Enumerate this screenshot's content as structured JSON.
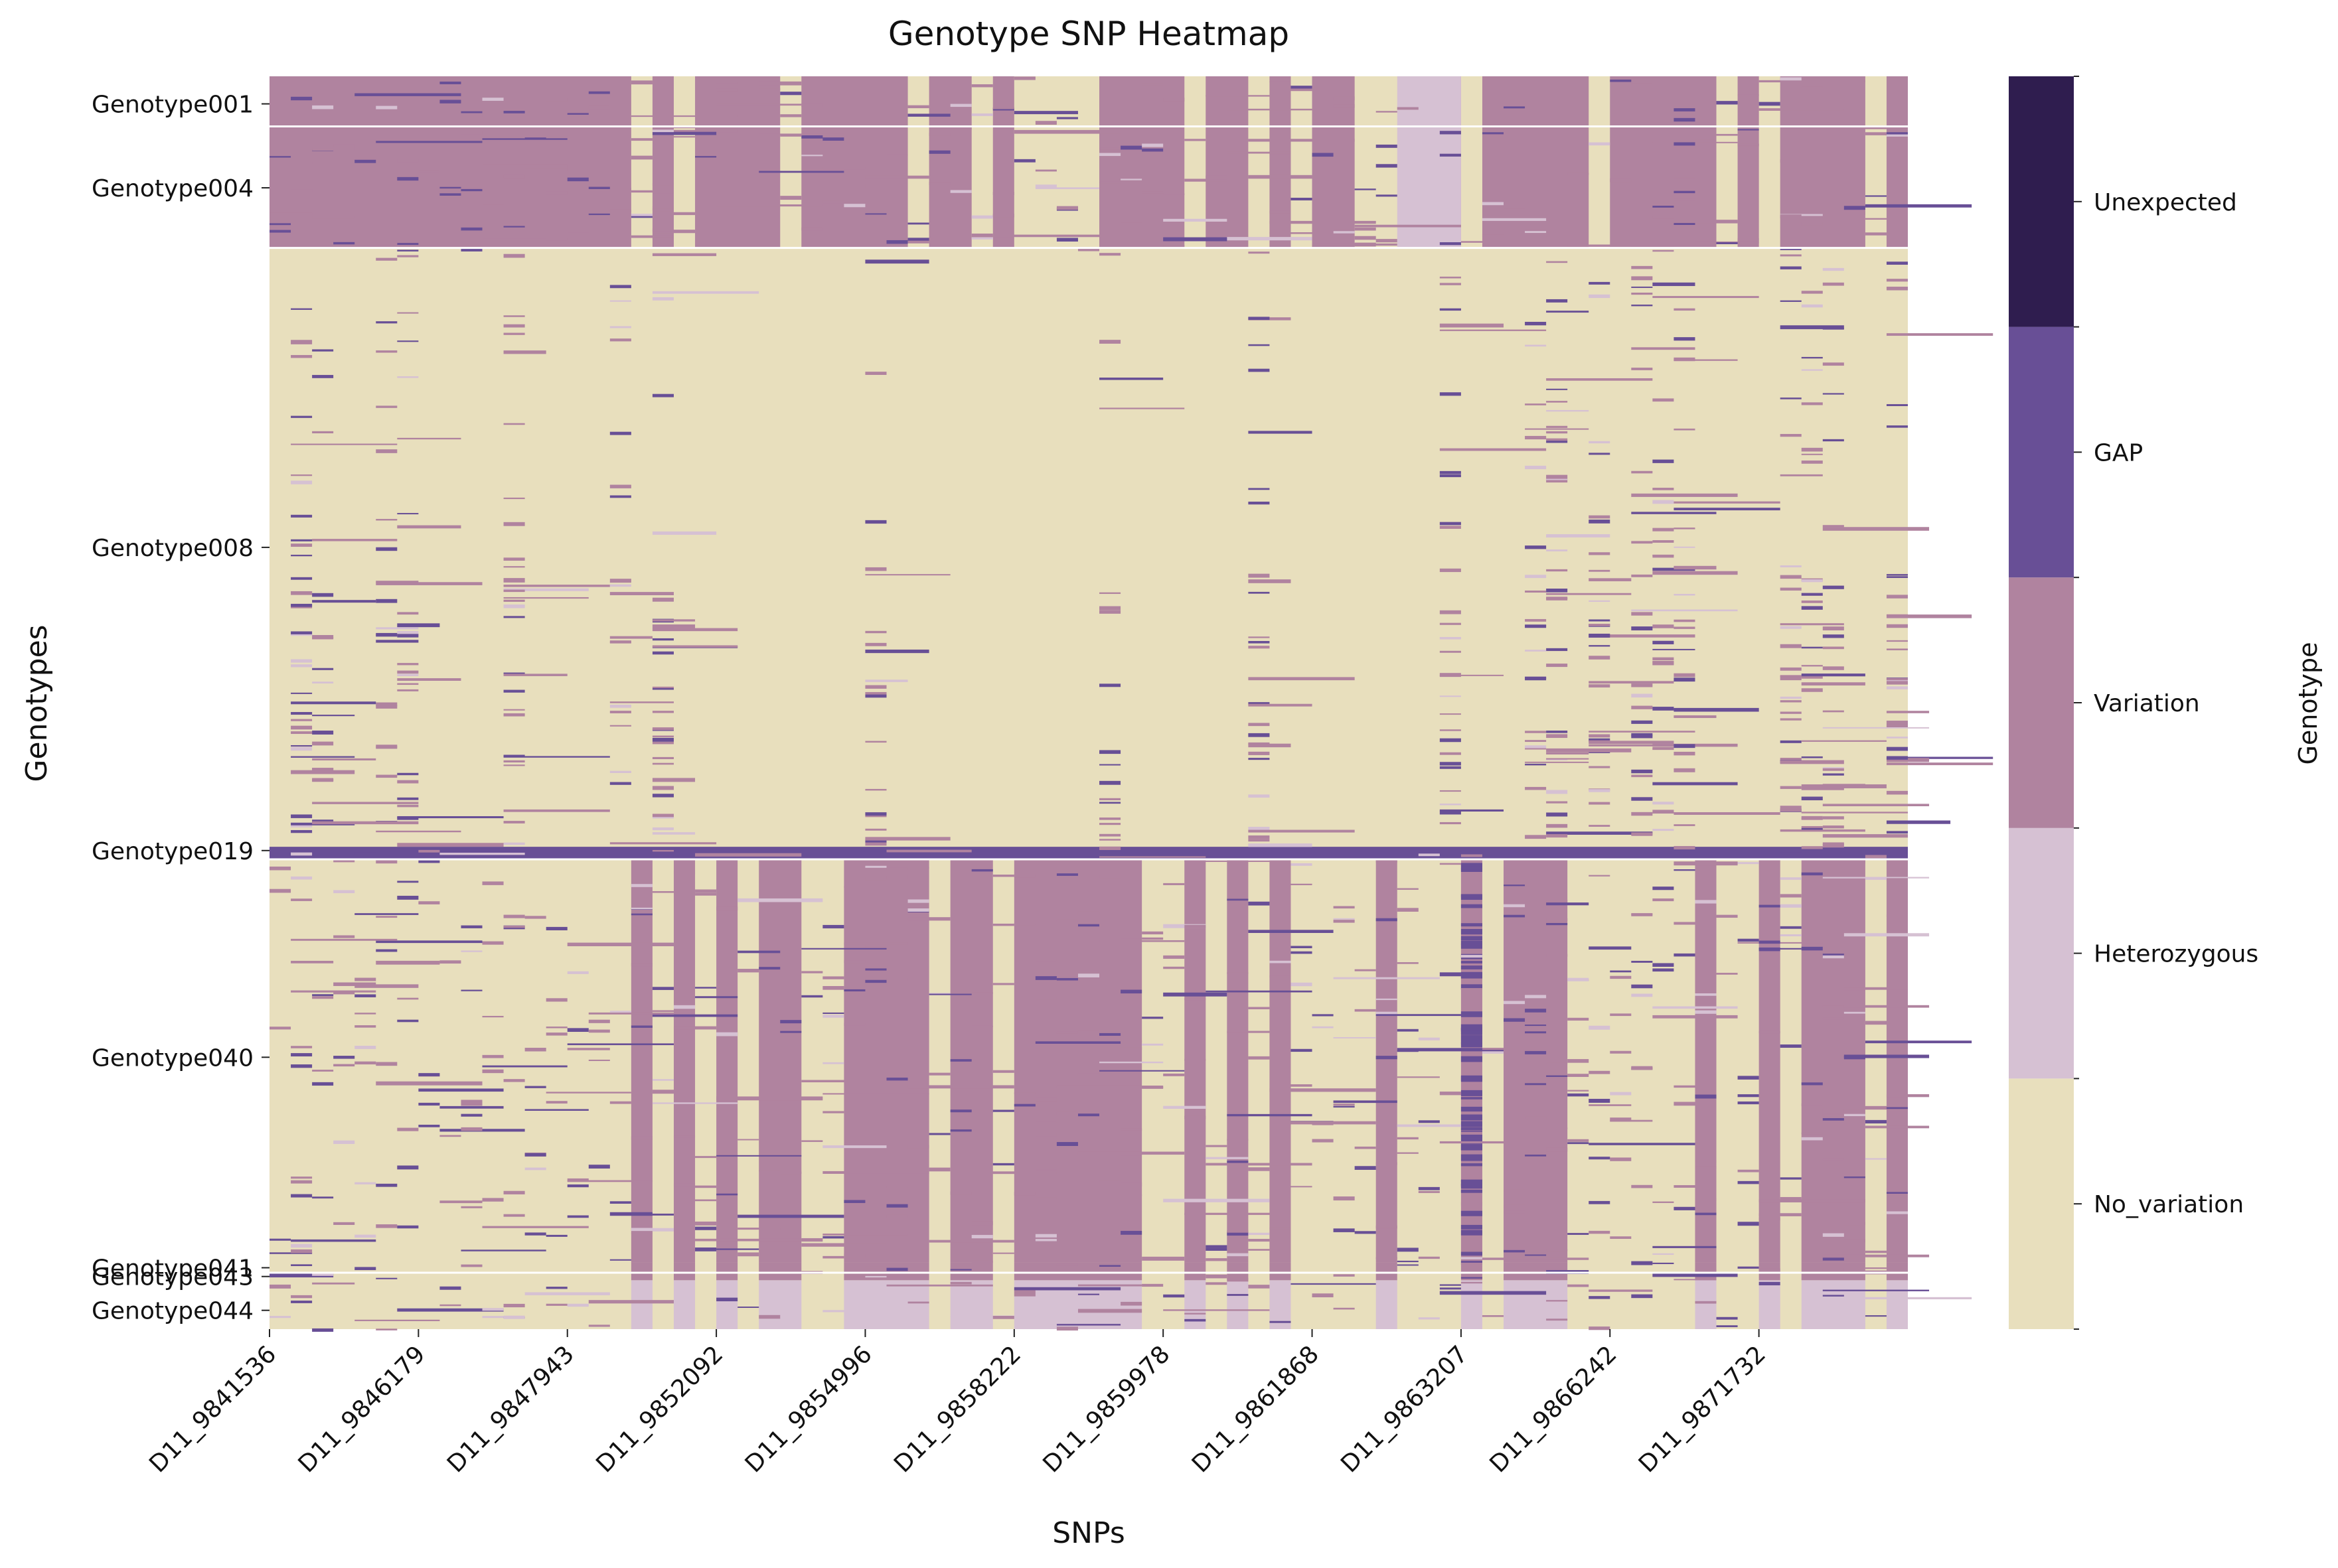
{
  "chart_data": {
    "type": "heatmap",
    "title": "Genotype SNP Heatmap",
    "xlabel": "SNPs",
    "ylabel": "Genotypes",
    "colorbar_label": "Genotype",
    "x_tick_labels": [
      "D11_9841536",
      "D11_9846179",
      "D11_9847943",
      "D11_9852092",
      "D11_9854996",
      "D11_9858222",
      "D11_9859978",
      "D11_9861868",
      "D11_9863207",
      "D11_9866242",
      "D11_9871732"
    ],
    "y_tick_labels": [
      {
        "label": "Genotype001",
        "row_fraction": 0.022
      },
      {
        "label": "Genotype004",
        "row_fraction": 0.089
      },
      {
        "label": "Genotype008",
        "row_fraction": 0.376
      },
      {
        "label": "Genotype019",
        "row_fraction": 0.618
      },
      {
        "label": "Genotype040",
        "row_fraction": 0.783
      },
      {
        "label": "Genotype041",
        "row_fraction": 0.951
      },
      {
        "label": "Genotype043",
        "row_fraction": 0.958
      },
      {
        "label": "Genotype044",
        "row_fraction": 0.985
      }
    ],
    "categories": [
      {
        "name": "No_variation",
        "code": 0,
        "color": "#e8dfbd"
      },
      {
        "name": "Heterozygous",
        "code": 1,
        "color": "#d6c1d3"
      },
      {
        "name": "Variation",
        "code": 2,
        "color": "#b0839f"
      },
      {
        "name": "GAP",
        "code": 3,
        "color": "#684f96"
      },
      {
        "name": "Unexpected",
        "code": 4,
        "color": "#2f1d4f"
      }
    ],
    "n_snp_columns": 77,
    "row_groups": [
      {
        "rows": [
          0.0,
          0.04
        ],
        "description_code": "variation_block_A"
      },
      {
        "rows": [
          0.04,
          0.137
        ],
        "description_code": "variation_block_A"
      },
      {
        "rows": [
          0.137,
          0.615
        ],
        "description_code": "mostly_no_variation"
      },
      {
        "rows": [
          0.615,
          0.625
        ],
        "description_code": "gap_row"
      },
      {
        "rows": [
          0.625,
          0.947
        ],
        "description_code": "variation_block_B"
      },
      {
        "rows": [
          0.947,
          0.961
        ],
        "description_code": "mixed"
      },
      {
        "rows": [
          0.961,
          1.0
        ],
        "description_code": "heterozygous_block_B"
      }
    ],
    "block_A_variation_column_ranges": [
      [
        0,
        17
      ],
      [
        18,
        19
      ],
      [
        20,
        24
      ],
      [
        25,
        30
      ],
      [
        31,
        33
      ],
      [
        34,
        35
      ],
      [
        39,
        43
      ],
      [
        44,
        46
      ],
      [
        47,
        48
      ],
      [
        49,
        51
      ],
      [
        55,
        56
      ],
      [
        57,
        62
      ],
      [
        63,
        68
      ],
      [
        69,
        70
      ],
      [
        71,
        75
      ],
      [
        76,
        77
      ]
    ],
    "block_A_heterozygous_column_ranges": [
      [
        53,
        56
      ]
    ],
    "block_B_variation_column_ranges": [
      [
        17,
        18
      ],
      [
        19,
        20
      ],
      [
        21,
        22
      ],
      [
        23,
        25
      ],
      [
        27,
        31
      ],
      [
        32,
        34
      ],
      [
        35,
        41
      ],
      [
        43,
        44
      ],
      [
        45,
        46
      ],
      [
        47,
        48
      ],
      [
        52,
        53
      ],
      [
        56,
        57
      ],
      [
        58,
        61
      ],
      [
        67,
        68
      ],
      [
        70,
        71
      ],
      [
        72,
        75
      ],
      [
        76,
        77
      ]
    ],
    "block_B_gap_column_ranges": [
      [
        56,
        57
      ]
    ]
  }
}
